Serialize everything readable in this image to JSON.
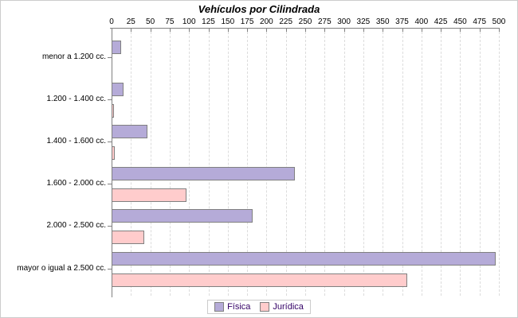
{
  "chart_data": {
    "type": "bar",
    "orientation": "horizontal",
    "title": "Vehículos por Cilindrada",
    "categories": [
      "menor a 1.200 cc.",
      "1.200 - 1.400 cc.",
      "1.400 - 1.600 cc.",
      "1.600 - 2.000 cc.",
      "2.000 - 2.500 cc.",
      "mayor o igual a 2.500 cc."
    ],
    "series": [
      {
        "name": "Física",
        "color": "#B5ABD8",
        "values": [
          10,
          13,
          44,
          235,
          180,
          494
        ]
      },
      {
        "name": "Jurídica",
        "color": "#FFCCCC",
        "values": [
          0,
          1,
          2,
          95,
          40,
          380
        ]
      }
    ],
    "xlim": [
      0,
      500
    ],
    "x_ticks": [
      0,
      25,
      50,
      75,
      100,
      125,
      150,
      175,
      200,
      225,
      250,
      275,
      300,
      325,
      350,
      375,
      400,
      425,
      450,
      475,
      500
    ],
    "grid": "vertical-dashed",
    "legend_position": "bottom",
    "bar_border_color": "#808080",
    "axis_color": "#808080",
    "gridline_color": "#DCDCDC",
    "legend_text_color": "#330066"
  },
  "legend": {
    "items": [
      {
        "label": "Física",
        "color": "#B5ABD8"
      },
      {
        "label": "Jurídica",
        "color": "#FFCCCC"
      }
    ]
  }
}
